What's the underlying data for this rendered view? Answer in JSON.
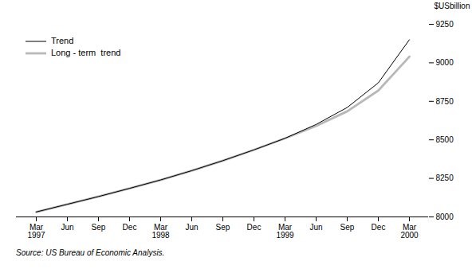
{
  "chart_data": {
    "type": "line",
    "ylabel": "$USbillion",
    "caption": "Source: US Bureau of Economic Analysis.",
    "categories": [
      "Mar\n1997",
      "Jun",
      "Sep",
      "Dec",
      "Mar\n1998",
      "Jun",
      "Sep",
      "Dec",
      "Mar\n1999",
      "Jun",
      "Sep",
      "Dec",
      "Mar\n2000"
    ],
    "series": [
      {
        "name": "Trend",
        "color": "#000000",
        "values": [
          8032,
          8082,
          8132,
          8185,
          8240,
          8300,
          8365,
          8435,
          8510,
          8600,
          8710,
          8870,
          9150
        ]
      },
      {
        "name": "Long - term  trend",
        "color": "#b8b8b8",
        "values": [
          8032,
          8082,
          8132,
          8185,
          8240,
          8300,
          8365,
          8435,
          8510,
          8590,
          8685,
          8820,
          9040
        ]
      }
    ],
    "ylim": [
      8000,
      9250
    ],
    "yticks": [
      8000,
      8250,
      8500,
      8750,
      9000,
      9250
    ],
    "grid": false,
    "legend": "upper left"
  }
}
